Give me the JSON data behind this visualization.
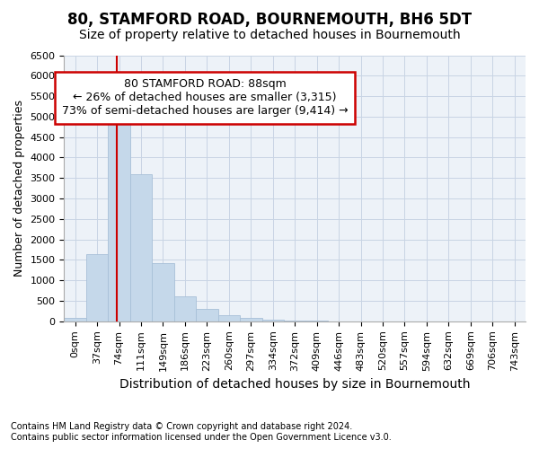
{
  "title": "80, STAMFORD ROAD, BOURNEMOUTH, BH6 5DT",
  "subtitle": "Size of property relative to detached houses in Bournemouth",
  "xlabel": "Distribution of detached houses by size in Bournemouth",
  "ylabel": "Number of detached properties",
  "footnote1": "Contains HM Land Registry data © Crown copyright and database right 2024.",
  "footnote2": "Contains public sector information licensed under the Open Government Licence v3.0.",
  "categories": [
    "0sqm",
    "37sqm",
    "74sqm",
    "111sqm",
    "149sqm",
    "186sqm",
    "223sqm",
    "260sqm",
    "297sqm",
    "334sqm",
    "372sqm",
    "409sqm",
    "446sqm",
    "483sqm",
    "520sqm",
    "557sqm",
    "594sqm",
    "632sqm",
    "669sqm",
    "706sqm",
    "743sqm"
  ],
  "values": [
    75,
    1650,
    5075,
    3600,
    1425,
    610,
    300,
    150,
    75,
    50,
    20,
    10,
    5,
    0,
    0,
    0,
    0,
    0,
    0,
    0,
    0
  ],
  "bar_color": "#c5d8ea",
  "bar_edge_color": "#a8c0d8",
  "ylim": [
    0,
    6500
  ],
  "yticks": [
    0,
    500,
    1000,
    1500,
    2000,
    2500,
    3000,
    3500,
    4000,
    4500,
    5000,
    5500,
    6000,
    6500
  ],
  "annotation_line1": "80 STAMFORD ROAD: 88sqm",
  "annotation_line2": "← 26% of detached houses are smaller (3,315)",
  "annotation_line3": "73% of semi-detached houses are larger (9,414) →",
  "annotation_box_color": "#ffffff",
  "annotation_border_color": "#cc0000",
  "red_line_color": "#cc0000",
  "grid_color": "#c8d4e4",
  "background_color": "#edf2f8",
  "title_fontsize": 12,
  "subtitle_fontsize": 10,
  "tick_fontsize": 8,
  "ylabel_fontsize": 9,
  "xlabel_fontsize": 10
}
